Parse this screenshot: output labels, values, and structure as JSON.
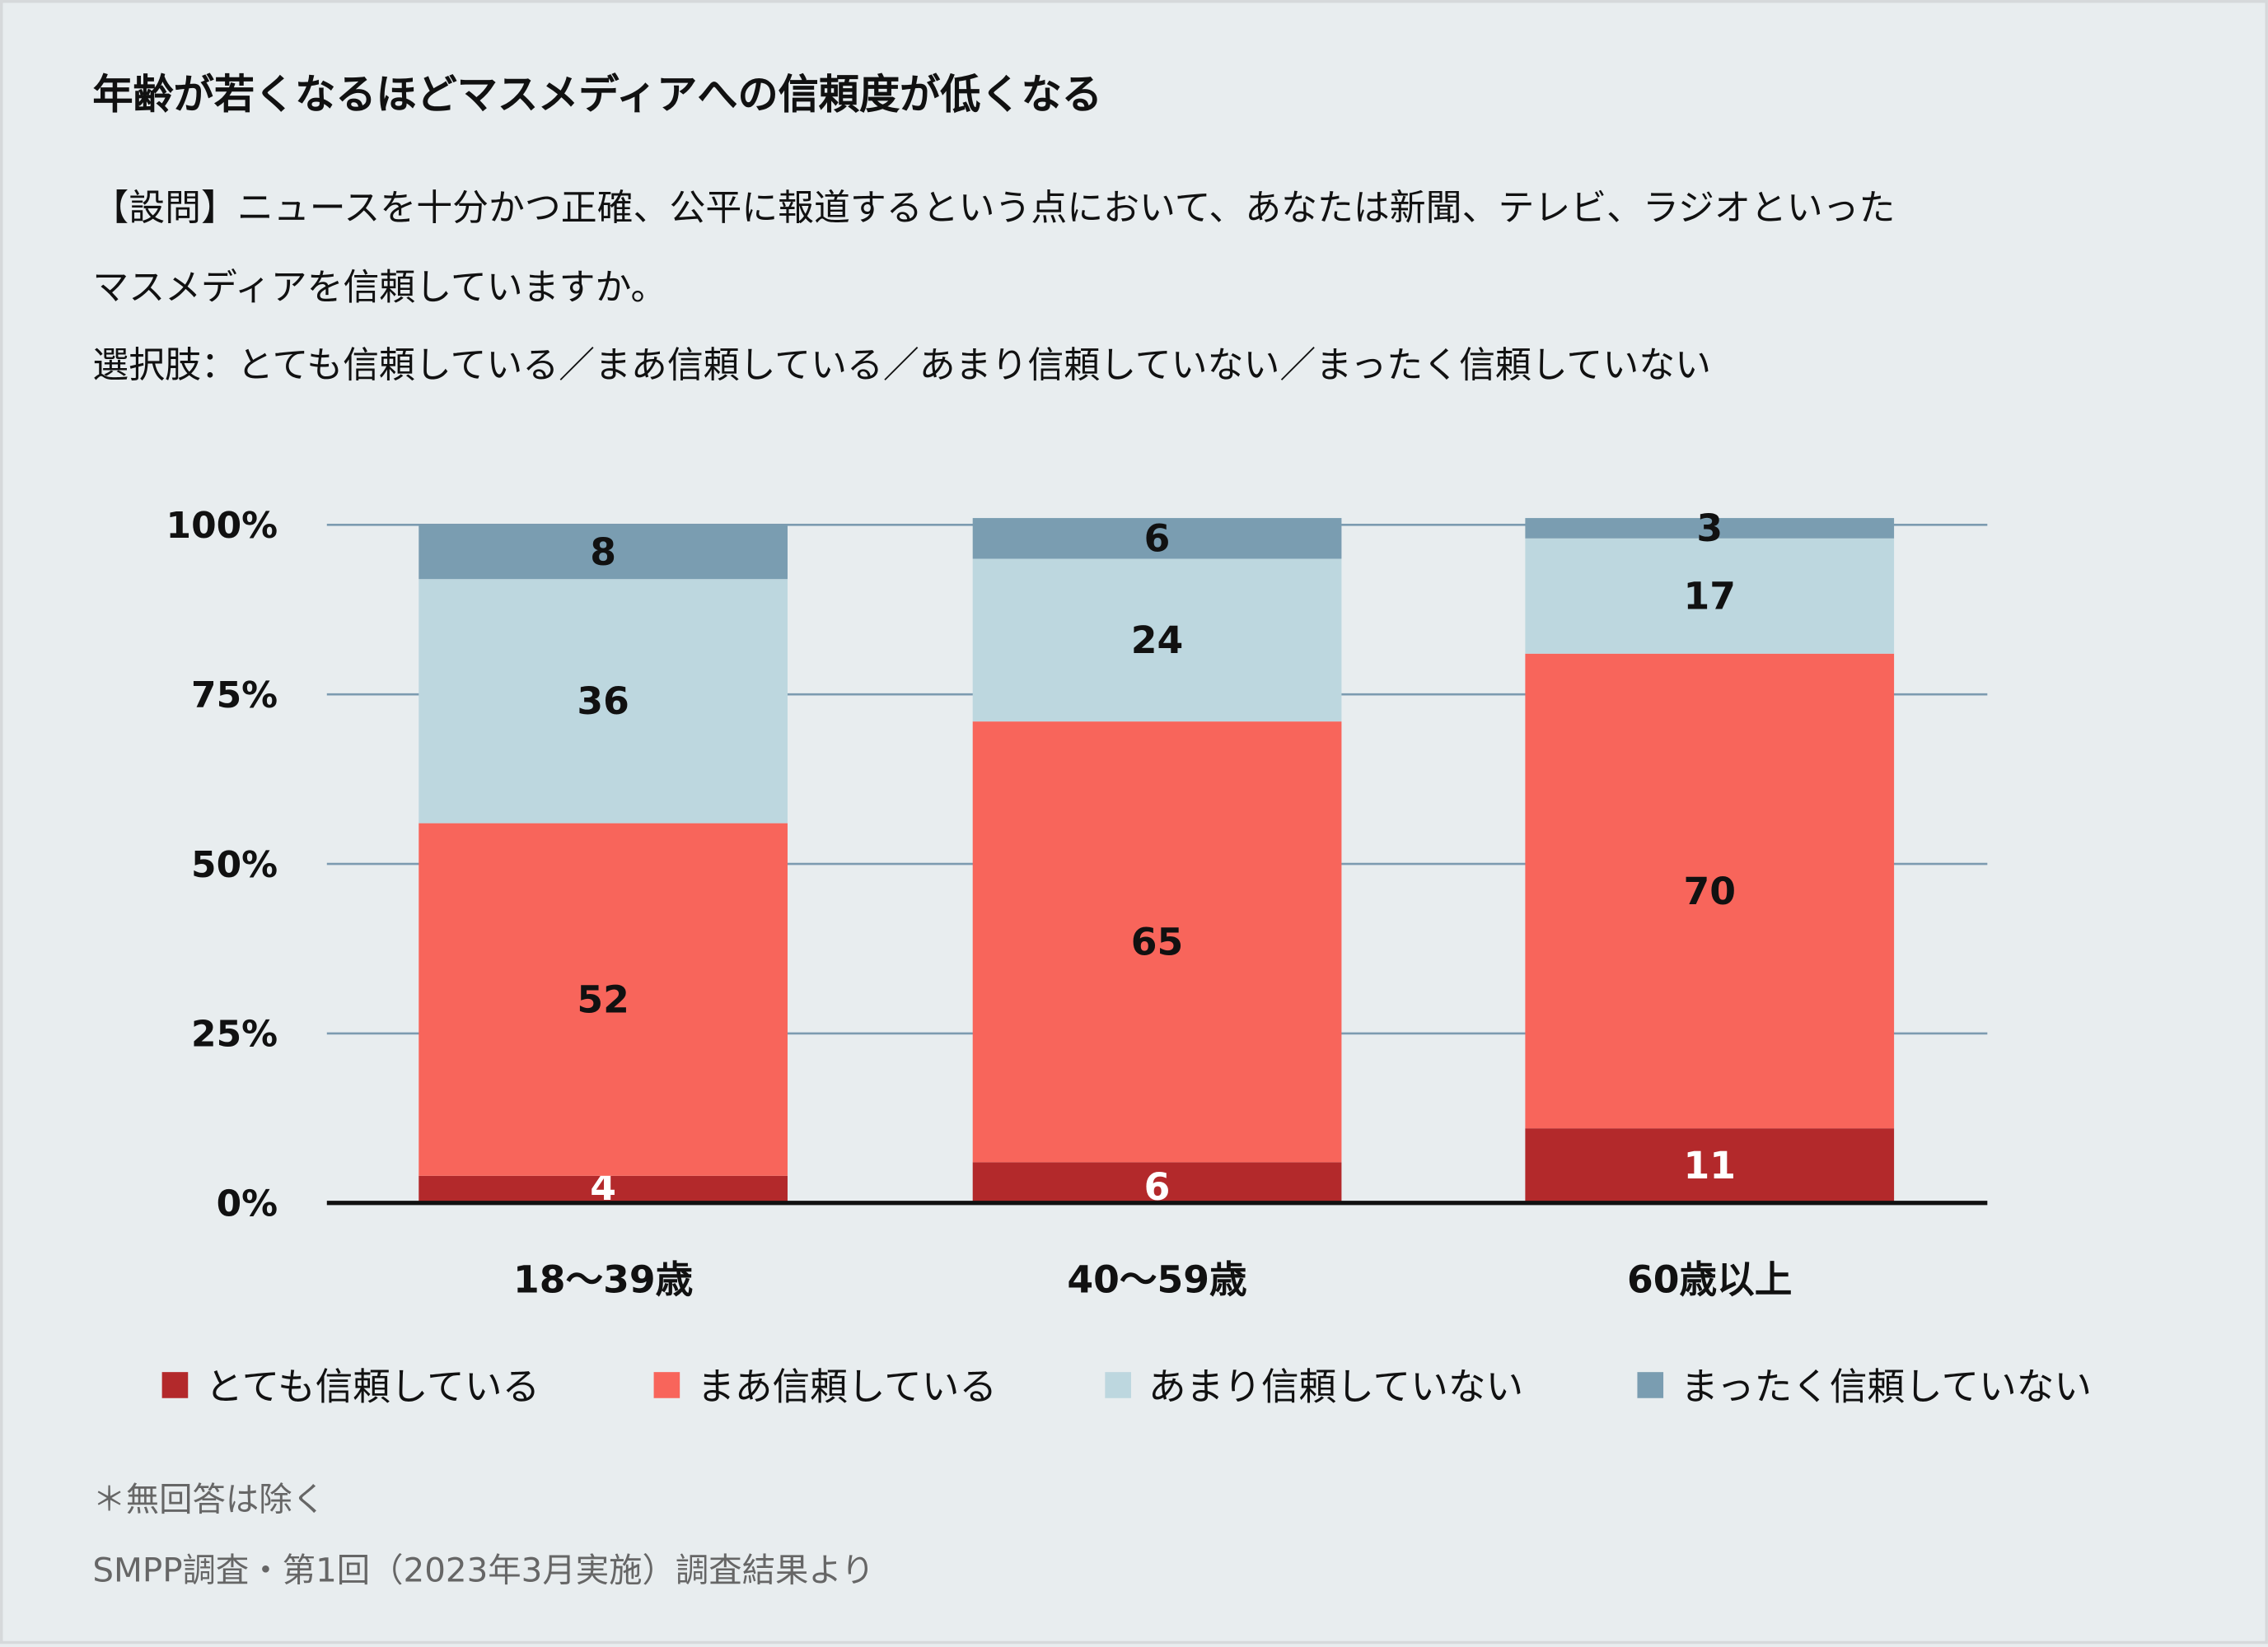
{
  "title": "年齢が若くなるほどマスメディアへの信頼度が低くなる",
  "question": {
    "line1": "【設問】ニュースを十分かつ正確、公平に報道するという点において、あなたは新聞、テレビ、ラジオといった",
    "line2": "マスメディアを信頼していますか。",
    "choices": "選択肢：とても信頼している／まあ信頼している／あまり信頼していない／まったく信頼していない"
  },
  "chart_data": {
    "type": "bar",
    "stacked": true,
    "categories": [
      "18〜39歳",
      "40〜59歳",
      "60歳以上"
    ],
    "series": [
      {
        "name": "とても信頼している",
        "color": "#b3292b",
        "values": [
          4,
          6,
          11
        ],
        "label_color": "#ffffff"
      },
      {
        "name": "まあ信頼している",
        "color": "#f8655b",
        "values": [
          52,
          65,
          70
        ],
        "label_color": "#111111"
      },
      {
        "name": "あまり信頼していない",
        "color": "#bdd7df",
        "values": [
          36,
          24,
          17
        ],
        "label_color": "#111111"
      },
      {
        "name": "まったく信頼していない",
        "color": "#7a9db1",
        "values": [
          8,
          6,
          3
        ],
        "label_color": "#111111"
      }
    ],
    "yticks": [
      "0%",
      "25%",
      "50%",
      "75%",
      "100%"
    ],
    "ylim": [
      0,
      100
    ],
    "grid": true,
    "legend": "bottom"
  },
  "footnotes": {
    "note": "＊無回答は除く",
    "source": "SMPP調査・第1回（2023年3月実施）調査結果より"
  }
}
